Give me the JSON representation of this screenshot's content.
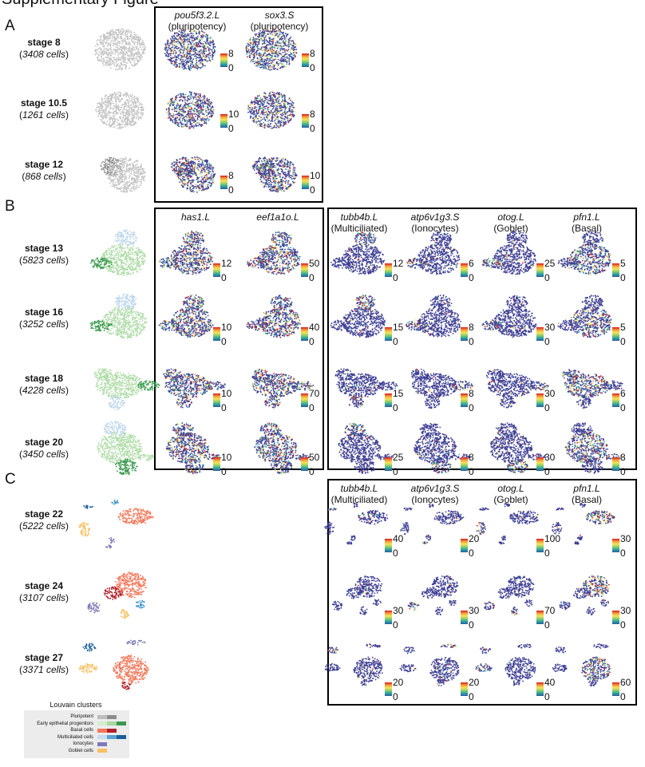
{
  "header": {
    "title": "Supplementary Figure"
  },
  "colorbar": {
    "gradient": [
      "#d7191c",
      "#f39c3c",
      "#f5e35a",
      "#8fce6a",
      "#2ba3a0",
      "#2c5b9e"
    ],
    "min_label": "0"
  },
  "colors": {
    "expression_background": "#3f3f95",
    "pluripotent": [
      "#bdbdbd",
      "#8c8c8c"
    ],
    "early_epithelial_progenitors": [
      "#d4ecd0",
      "#a8d8a0",
      "#3a9a50"
    ],
    "basal": [
      "#f4775a",
      "#b0202a"
    ],
    "multiciliated": [
      "#c6dbef",
      "#5aa0d0",
      "#1a5d9a"
    ],
    "ionocytes": [
      "#7e7bb8"
    ],
    "goblet": [
      "#f8c060"
    ]
  },
  "panels": [
    {
      "letter": "A",
      "genes": [
        {
          "name": "pou5f3.2.L",
          "role": "(pluripotency)"
        },
        {
          "name": "sox3.S",
          "role": "(pluripotency)"
        }
      ],
      "rows": [
        {
          "stage": "stage 8",
          "cells": "3408 cells",
          "max": [
            "8",
            "8"
          ]
        },
        {
          "stage": "stage 10.5",
          "cells": "1261 cells",
          "max": [
            "10",
            "8"
          ]
        },
        {
          "stage": "stage 12",
          "cells": "868 cells",
          "max": [
            "8",
            "10"
          ]
        }
      ]
    },
    {
      "letter": "B",
      "genes_left": [
        {
          "name": "has1.L",
          "role": ""
        },
        {
          "name": "eef1a1o.L",
          "role": ""
        }
      ],
      "genes_right": [
        {
          "name": "tubb4b.L",
          "role": "(Multiciliated)"
        },
        {
          "name": "atp6v1g3.S",
          "role": "(Ionocytes)"
        },
        {
          "name": "otog.L",
          "role": "(Goblet)"
        },
        {
          "name": "pfn1.L",
          "role": "(Basal)"
        }
      ],
      "rows": [
        {
          "stage": "stage 13",
          "cells": "5823 cells",
          "max": [
            "12",
            "50",
            "12",
            "6",
            "25",
            "5"
          ]
        },
        {
          "stage": "stage 16",
          "cells": "3252 cells",
          "max": [
            "10",
            "40",
            "15",
            "8",
            "30",
            "5"
          ]
        },
        {
          "stage": "stage 18",
          "cells": "4228 cells",
          "max": [
            "10",
            "70",
            "15",
            "8",
            "30",
            "6"
          ]
        },
        {
          "stage": "stage 20",
          "cells": "3450 cells",
          "max": [
            "10",
            "50",
            "25",
            "8",
            "30",
            "8"
          ]
        }
      ]
    },
    {
      "letter": "C",
      "genes": [
        {
          "name": "tubb4b.L",
          "role": "(Multiciliated)"
        },
        {
          "name": "atp6v1g3.S",
          "role": "(Ionocytes)"
        },
        {
          "name": "otog.L",
          "role": "(Goblet)"
        },
        {
          "name": "pfn1.L",
          "role": "(Basal)"
        }
      ],
      "rows": [
        {
          "stage": "stage 22",
          "cells": "5222 cells",
          "max": [
            "40",
            "20",
            "100",
            "30"
          ]
        },
        {
          "stage": "stage 24",
          "cells": "3107 cells",
          "max": [
            "30",
            "30",
            "70",
            "30"
          ]
        },
        {
          "stage": "stage 27",
          "cells": "3371 cells",
          "max": [
            "20",
            "20",
            "40",
            "60"
          ]
        }
      ]
    }
  ],
  "legend": {
    "title": "Louvain clusters",
    "items": [
      {
        "label": "Pluripotent",
        "colors": [
          "#bdbdbd",
          "#8c8c8c"
        ]
      },
      {
        "label": "Early epithelial progenitors",
        "colors": [
          "#d4ecd0",
          "#a8d8a0",
          "#3a9a50"
        ]
      },
      {
        "label": "Basal cells",
        "colors": [
          "#f4775a",
          "#b0202a"
        ]
      },
      {
        "label": "Multiciliated cells",
        "colors": [
          "#c6dbef",
          "#5aa0d0",
          "#1a5d9a"
        ]
      },
      {
        "label": "Ionocytes",
        "colors": [
          "#7e7bb8"
        ]
      },
      {
        "label": "Goblet cells",
        "colors": [
          "#f8c060"
        ]
      }
    ]
  }
}
